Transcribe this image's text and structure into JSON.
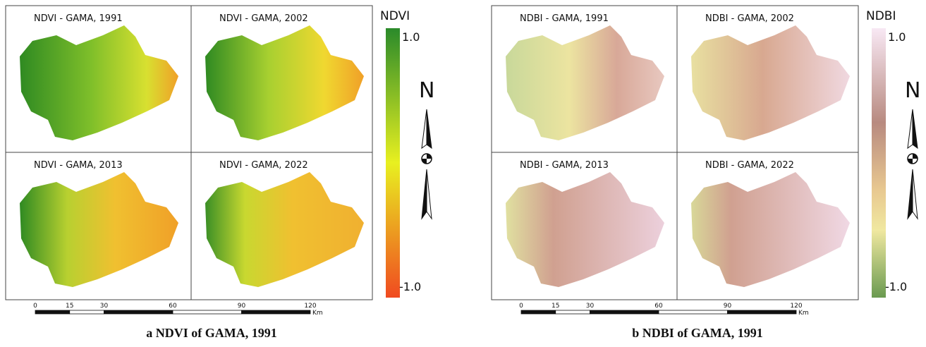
{
  "panels": [
    {
      "maps": [
        "NDVI - GAMA, 1991",
        "NDVI - GAMA, 2002",
        "NDVI - GAMA, 2013",
        "NDVI - GAMA, 2022"
      ],
      "legend": {
        "title": "NDVI",
        "max": "1.0",
        "min": "-1.0"
      },
      "north": "N",
      "scale": {
        "ticks": [
          0,
          15,
          30,
          60,
          90,
          120
        ],
        "unit": "Km"
      },
      "caption": "a NDVI of GAMA, 1991"
    },
    {
      "maps": [
        "NDBI - GAMA, 1991",
        "NDBI - GAMA, 2002",
        "NDBI - GAMA, 2013",
        "NDBI - GAMA, 2022"
      ],
      "legend": {
        "title": "NDBI",
        "max": "1.0",
        "min": "-1.0"
      },
      "north": "N",
      "scale": {
        "ticks": [
          0,
          15,
          30,
          60,
          90,
          120
        ],
        "unit": "Km"
      },
      "caption": "b NDBI of GAMA, 1991"
    }
  ]
}
